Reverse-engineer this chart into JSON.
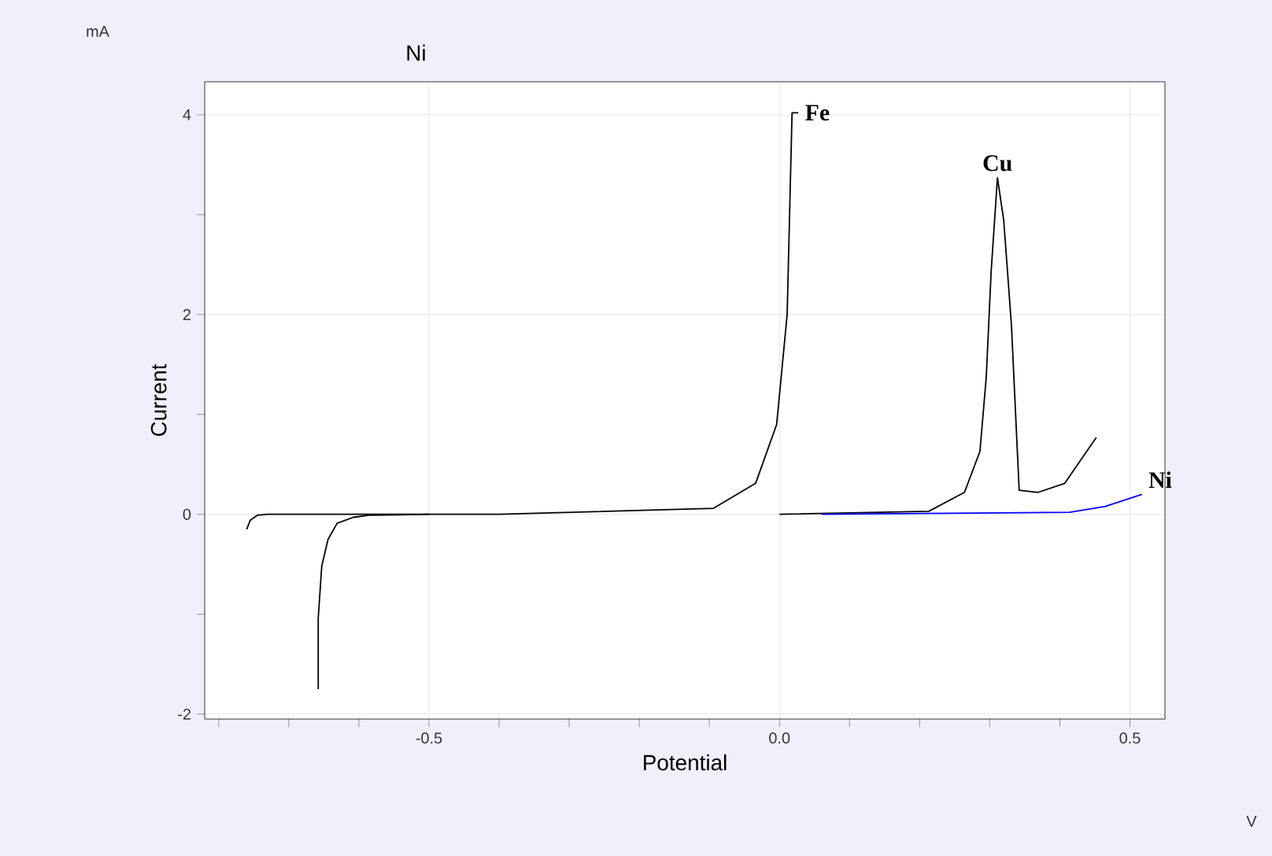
{
  "chart_data": {
    "type": "line",
    "title": "Ni",
    "xlabel": "Potential",
    "ylabel": "Current",
    "annotations": [
      {
        "text": "Fe",
        "x": 0.027,
        "y": 4.02
      },
      {
        "text": "Cu",
        "x": 0.311,
        "y": 3.37
      },
      {
        "text": "Ni",
        "x": 0.517,
        "y": 0.2
      },
      "mA",
      "V"
    ],
    "series": [
      {
        "color": "#000000",
        "x": [
          -0.76,
          -0.755,
          -0.745,
          -0.73,
          -0.4,
          -0.094,
          -0.034,
          -0.004,
          0.011,
          0.018,
          0.027
        ],
        "values": [
          -0.15,
          -0.06,
          -0.01,
          0,
          0,
          0.06,
          0.31,
          0.9,
          2.0,
          4.02,
          4.02
        ]
      },
      {
        "color": "#000000",
        "x": [
          -0.658,
          -0.658,
          -0.653,
          -0.644,
          -0.631,
          -0.608,
          -0.586,
          -0.5
        ],
        "values": [
          -1.75,
          -1.04,
          -0.52,
          -0.25,
          -0.09,
          -0.03,
          -0.01,
          0
        ]
      },
      {
        "color": "#000000",
        "x": [
          0.0,
          0.213,
          0.264,
          0.286,
          0.295,
          0.302,
          0.311,
          0.32,
          0.331,
          0.342,
          0.369,
          0.407,
          0.452
        ],
        "values": [
          0,
          0.03,
          0.22,
          0.63,
          1.37,
          2.43,
          3.37,
          2.94,
          1.89,
          0.24,
          0.22,
          0.31,
          0.77
        ]
      },
      {
        "color": "#0000ff",
        "x": [
          0.06,
          0.414,
          0.465,
          0.517
        ],
        "values": [
          0,
          0.02,
          0.08,
          0.2
        ]
      }
    ],
    "xlim": [
      -0.82,
      0.55
    ],
    "ylim": [
      -2.05,
      4.33
    ],
    "xticks": [
      {
        "value": -0.8,
        "label": null
      },
      {
        "value": -0.7,
        "label": null
      },
      {
        "value": -0.6,
        "label": null
      },
      {
        "value": -0.5,
        "label": "-0.5"
      },
      {
        "value": -0.4,
        "label": null
      },
      {
        "value": -0.3,
        "label": null
      },
      {
        "value": -0.2,
        "label": null
      },
      {
        "value": -0.1,
        "label": null
      },
      {
        "value": 0,
        "label": "0.0"
      },
      {
        "value": 0.1,
        "label": null
      },
      {
        "value": 0.2,
        "label": null
      },
      {
        "value": 0.3,
        "label": null
      },
      {
        "value": 0.4,
        "label": null
      },
      {
        "value": 0.5,
        "label": "0.5"
      }
    ],
    "yticks": [
      -2,
      {
        "value": -1,
        "label": null
      },
      0,
      {
        "value": 1,
        "label": null
      },
      2,
      {
        "value": 3,
        "label": null
      },
      4
    ],
    "grid": true,
    "marker": "none",
    "line_style": "solid"
  }
}
